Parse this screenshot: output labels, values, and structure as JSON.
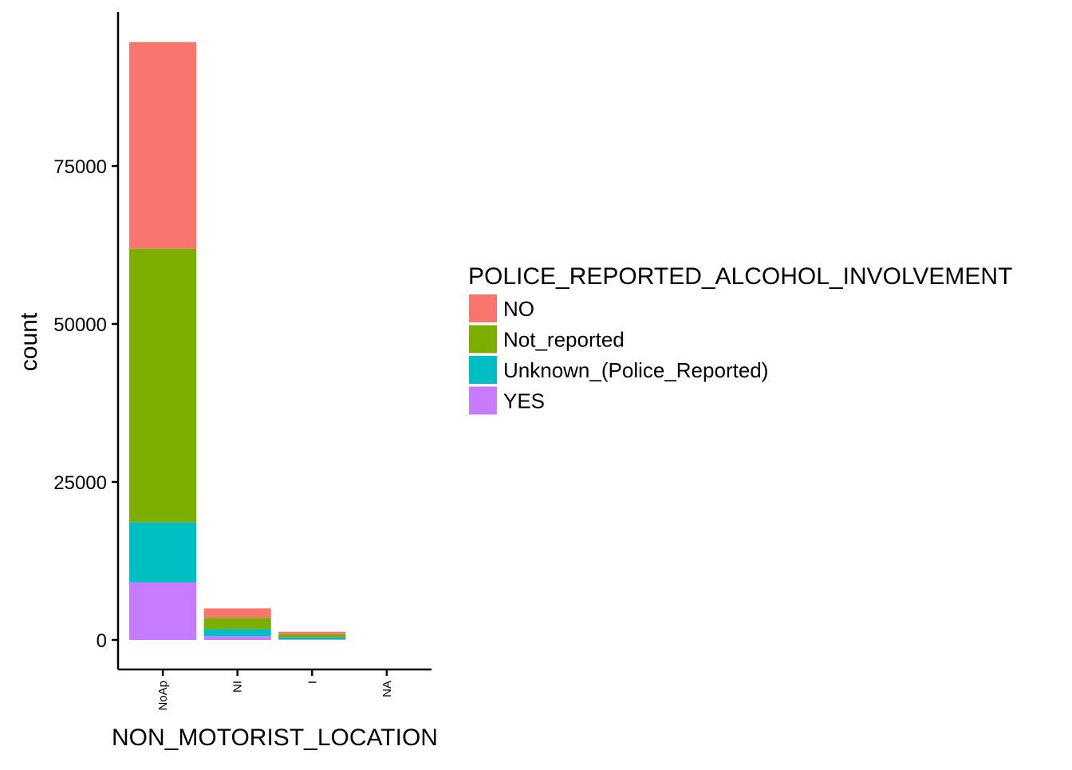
{
  "chart_data": {
    "type": "bar",
    "stacked": true,
    "title": "",
    "xlabel": "NON_MOTORIST_LOCATION",
    "ylabel": "count",
    "categories": [
      "NoAp",
      "NI",
      "I",
      "NA"
    ],
    "ylim": [
      0,
      96000
    ],
    "yticks": [
      0,
      25000,
      50000,
      75000
    ],
    "y_tick_labels": [
      "0",
      "25000",
      "50000",
      "75000"
    ],
    "grid": false,
    "legend": {
      "title": "POLICE_REPORTED_ALCOHOL_INVOLVEMENT",
      "position": "right"
    },
    "series": [
      {
        "name": "YES",
        "color": "#C77CFF",
        "values": [
          9100,
          600,
          100,
          0
        ]
      },
      {
        "name": "Unknown_(Police_Reported)",
        "color": "#00BFC4",
        "values": [
          9500,
          1100,
          300,
          0
        ]
      },
      {
        "name": "Not_reported",
        "color": "#7CAE00",
        "values": [
          43300,
          1800,
          500,
          0
        ]
      },
      {
        "name": "NO",
        "color": "#F8766D",
        "values": [
          32700,
          1500,
          400,
          0
        ]
      }
    ],
    "legend_order": [
      "NO",
      "Not_reported",
      "Unknown_(Police_Reported)",
      "YES"
    ]
  }
}
